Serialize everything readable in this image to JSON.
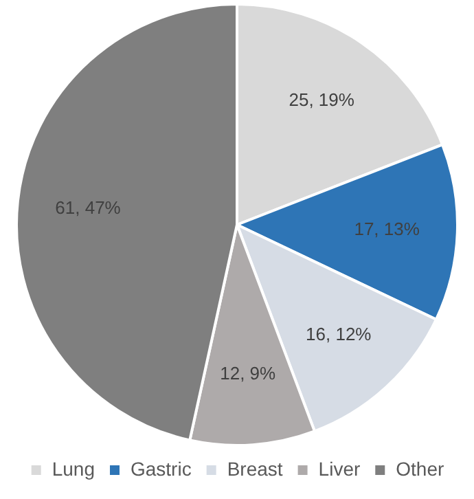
{
  "chart_data": {
    "type": "pie",
    "categories": [
      "Lung",
      "Gastric",
      "Breast",
      "Liver",
      "Other"
    ],
    "values": [
      25,
      17,
      16,
      12,
      61
    ],
    "colors": [
      "#d9d9d9",
      "#2e75b6",
      "#d6dce5",
      "#aeaaaa",
      "#7f7f7f"
    ],
    "value_labels": [
      "25, 19%",
      "17, 13%",
      "16, 12%",
      "12, 9%",
      "61, 47%"
    ],
    "legend": "bottom"
  }
}
